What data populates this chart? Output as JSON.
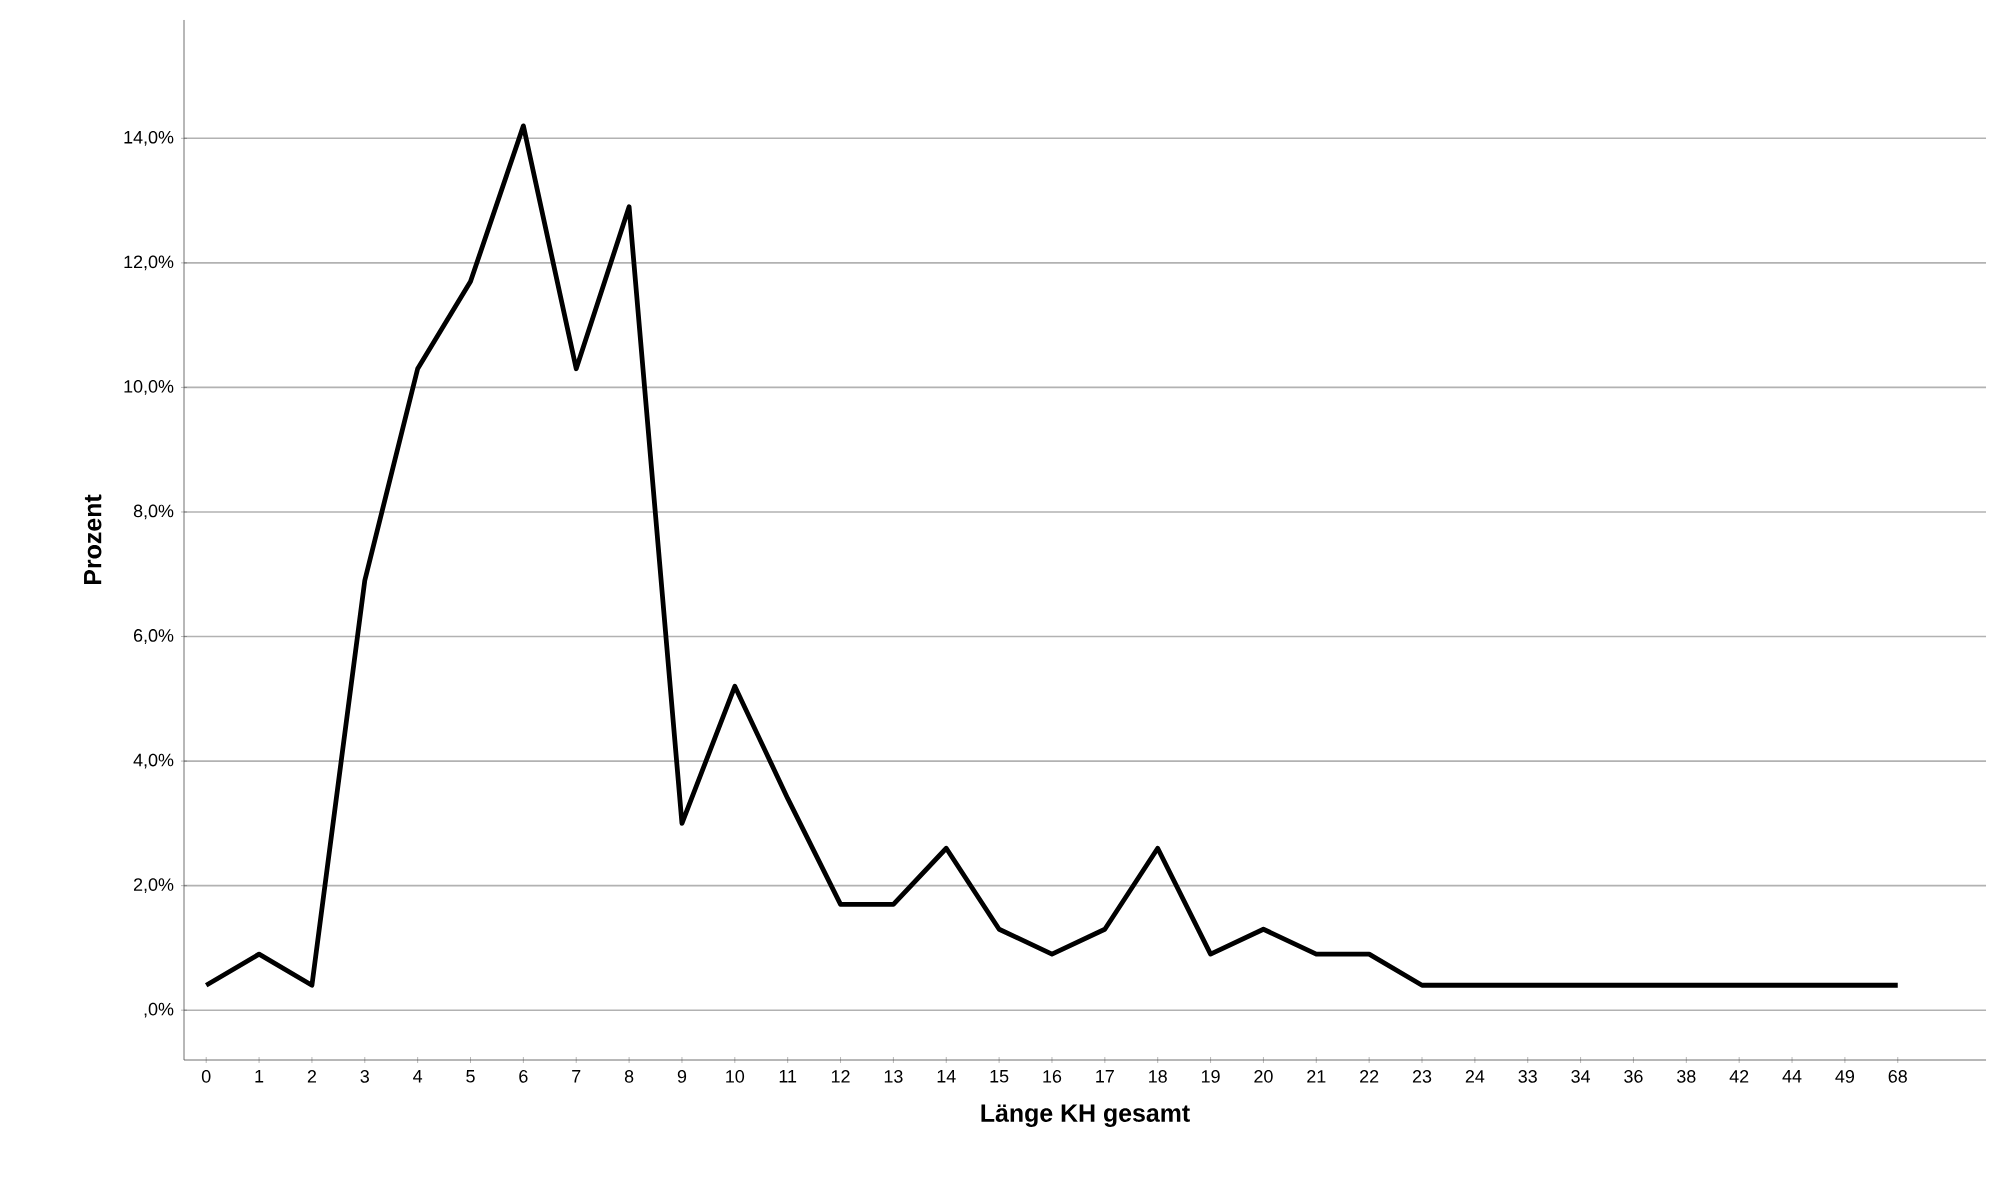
{
  "chart_data": {
    "type": "line",
    "xlabel": "Länge KH gesamt",
    "ylabel": "Prozent",
    "color": "#000000",
    "grid": "y",
    "categories": [
      "0",
      "1",
      "2",
      "3",
      "4",
      "5",
      "6",
      "7",
      "8",
      "9",
      "10",
      "11",
      "12",
      "13",
      "14",
      "15",
      "16",
      "17",
      "18",
      "19",
      "20",
      "21",
      "22",
      "23",
      "24",
      "33",
      "34",
      "36",
      "38",
      "42",
      "44",
      "49",
      "68"
    ],
    "values": [
      0.4,
      0.9,
      0.4,
      6.9,
      10.3,
      11.7,
      14.2,
      10.3,
      12.9,
      3.0,
      5.2,
      3.4,
      1.7,
      1.7,
      2.6,
      1.3,
      0.9,
      1.3,
      2.6,
      0.9,
      1.3,
      0.9,
      0.9,
      0.4,
      0.4,
      0.4,
      0.4,
      0.4,
      0.4,
      0.4,
      0.4,
      0.4,
      0.4
    ],
    "ylim": [
      -0.8,
      15.9
    ],
    "yticks": [
      {
        "value": 0,
        "label": ",0%"
      },
      {
        "value": 2,
        "label": "2,0%"
      },
      {
        "value": 4,
        "label": "4,0%"
      },
      {
        "value": 6,
        "label": "6,0%"
      },
      {
        "value": 8,
        "label": "8,0%"
      },
      {
        "value": 10,
        "label": "10,0%"
      },
      {
        "value": 12,
        "label": "12,0%"
      },
      {
        "value": 14,
        "label": "14,0%"
      }
    ]
  }
}
